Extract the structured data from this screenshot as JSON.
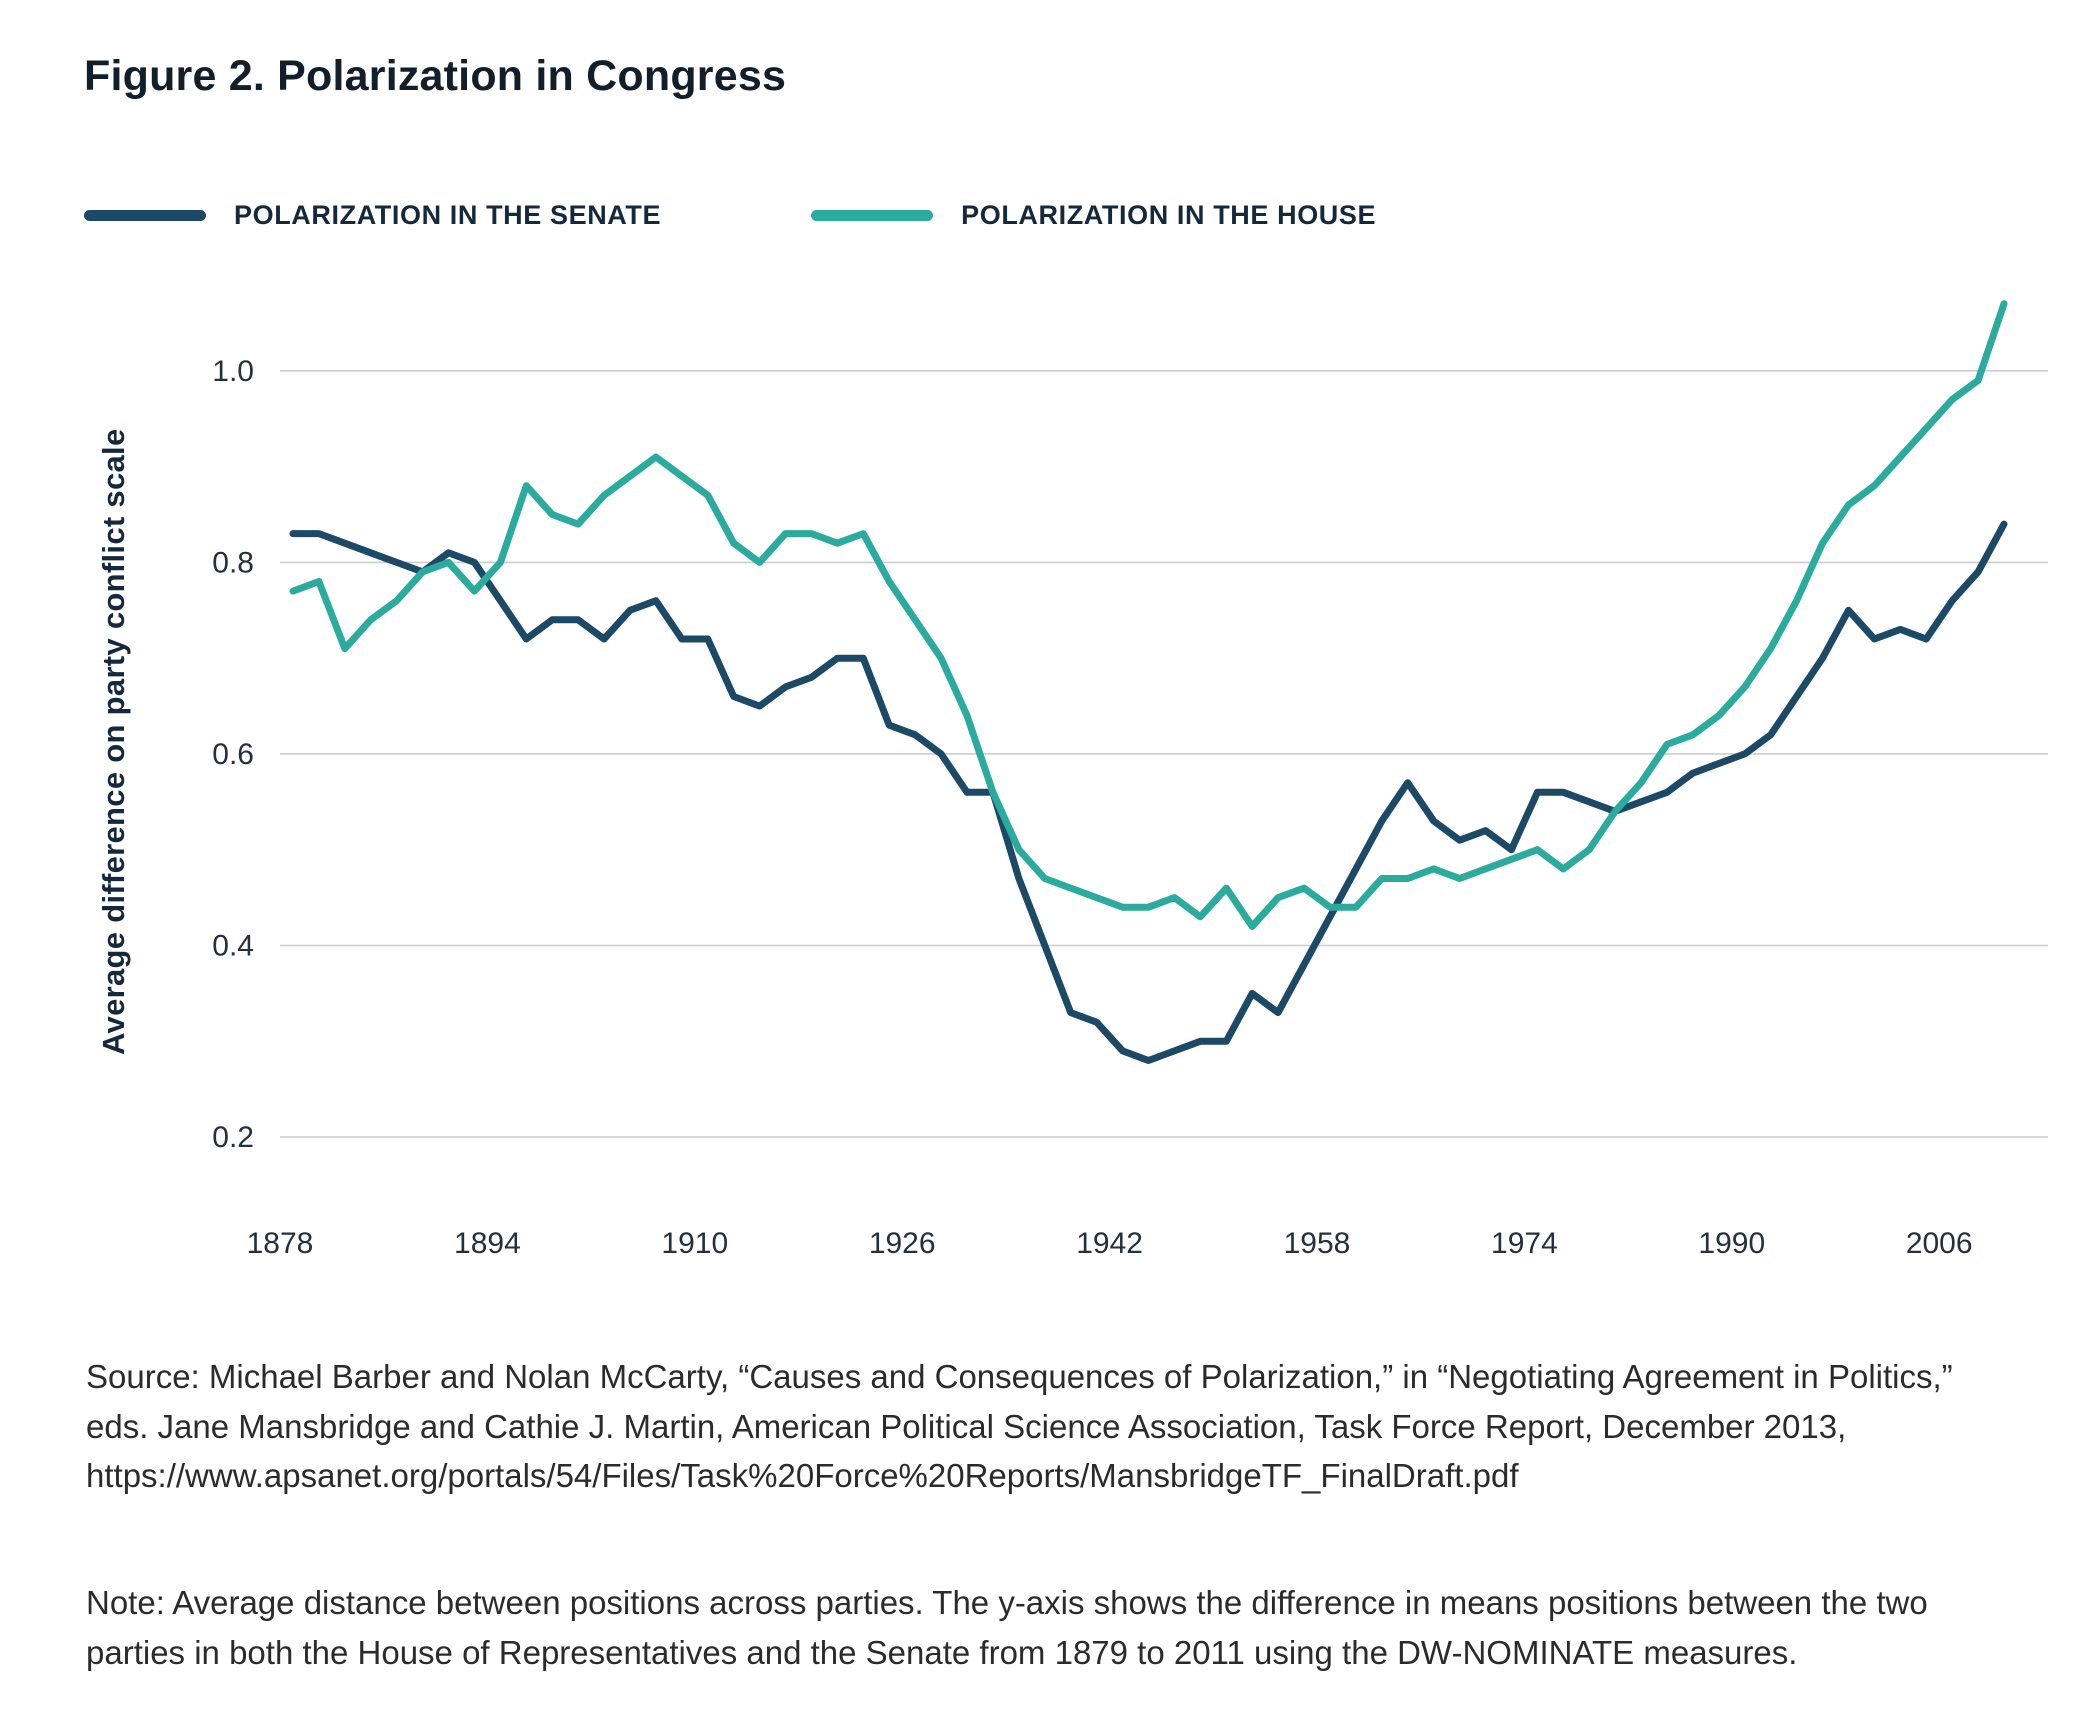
{
  "figure": {
    "title": "Figure 2. Polarization in Congress"
  },
  "legend": [
    {
      "label": "POLARIZATION IN THE SENATE",
      "color": "#1c4966"
    },
    {
      "label": "POLARIZATION IN THE HOUSE",
      "color": "#2aab9e"
    }
  ],
  "chart_data": {
    "type": "line",
    "title": "Figure 2. Polarization in Congress",
    "xlabel": "",
    "ylabel": "Average difference on party conflict scale",
    "xlim": [
      1878,
      2011
    ],
    "ylim": [
      0.15,
      1.1
    ],
    "xticks": [
      1878,
      1894,
      1910,
      1926,
      1942,
      1958,
      1974,
      1990,
      2006
    ],
    "yticks": [
      0.2,
      0.4,
      0.6,
      0.8,
      1.0
    ],
    "grid": "horizontal",
    "legend_position": "top",
    "x": [
      1879,
      1881,
      1883,
      1885,
      1887,
      1889,
      1891,
      1893,
      1895,
      1897,
      1899,
      1901,
      1903,
      1905,
      1907,
      1909,
      1911,
      1913,
      1915,
      1917,
      1919,
      1921,
      1923,
      1925,
      1927,
      1929,
      1931,
      1933,
      1935,
      1937,
      1939,
      1941,
      1943,
      1945,
      1947,
      1949,
      1951,
      1953,
      1955,
      1957,
      1959,
      1961,
      1963,
      1965,
      1967,
      1969,
      1971,
      1973,
      1975,
      1977,
      1979,
      1981,
      1983,
      1985,
      1987,
      1989,
      1991,
      1993,
      1995,
      1997,
      1999,
      2001,
      2003,
      2005,
      2007,
      2009,
      2011
    ],
    "series": [
      {
        "name": "Polarization in the Senate",
        "color": "#1c4966",
        "values": [
          0.83,
          0.83,
          0.82,
          0.81,
          0.8,
          0.79,
          0.81,
          0.8,
          0.76,
          0.72,
          0.74,
          0.74,
          0.72,
          0.75,
          0.76,
          0.72,
          0.72,
          0.66,
          0.65,
          0.67,
          0.68,
          0.7,
          0.7,
          0.63,
          0.62,
          0.6,
          0.56,
          0.56,
          0.47,
          0.4,
          0.33,
          0.32,
          0.29,
          0.28,
          0.29,
          0.3,
          0.3,
          0.35,
          0.33,
          0.38,
          0.43,
          0.48,
          0.53,
          0.57,
          0.53,
          0.51,
          0.52,
          0.5,
          0.56,
          0.56,
          0.55,
          0.54,
          0.55,
          0.56,
          0.58,
          0.59,
          0.6,
          0.62,
          0.66,
          0.7,
          0.75,
          0.72,
          0.73,
          0.72,
          0.76,
          0.79,
          0.84
        ]
      },
      {
        "name": "Polarization in the House",
        "color": "#2aab9e",
        "values": [
          0.77,
          0.78,
          0.71,
          0.74,
          0.76,
          0.79,
          0.8,
          0.77,
          0.8,
          0.88,
          0.85,
          0.84,
          0.87,
          0.89,
          0.91,
          0.89,
          0.87,
          0.82,
          0.8,
          0.83,
          0.83,
          0.82,
          0.83,
          0.78,
          0.74,
          0.7,
          0.64,
          0.56,
          0.5,
          0.47,
          0.46,
          0.45,
          0.44,
          0.44,
          0.45,
          0.43,
          0.46,
          0.42,
          0.45,
          0.46,
          0.44,
          0.44,
          0.47,
          0.47,
          0.48,
          0.47,
          0.48,
          0.49,
          0.5,
          0.48,
          0.5,
          0.54,
          0.57,
          0.61,
          0.62,
          0.64,
          0.67,
          0.71,
          0.76,
          0.82,
          0.86,
          0.88,
          0.91,
          0.94,
          0.97,
          0.99,
          1.07
        ]
      }
    ]
  },
  "source": {
    "text": "Source: Michael Barber and Nolan McCarty, “Causes and Consequences of Polarization,” in “Negotiating Agreement in Politics,” eds. Jane Mansbridge and Cathie J. Martin, American Political Science Association, Task Force Report, December 2013, https://www.apsanet.org/portals/54/Files/Task%20Force%20Reports/MansbridgeTF_FinalDraft.pdf"
  },
  "note": {
    "text": "Note: Average distance between positions across parties. The y-axis shows the difference in means positions between the two parties in both the House of Representatives and the Senate from 1879 to 2011 using the DW-NOMINATE measures."
  }
}
